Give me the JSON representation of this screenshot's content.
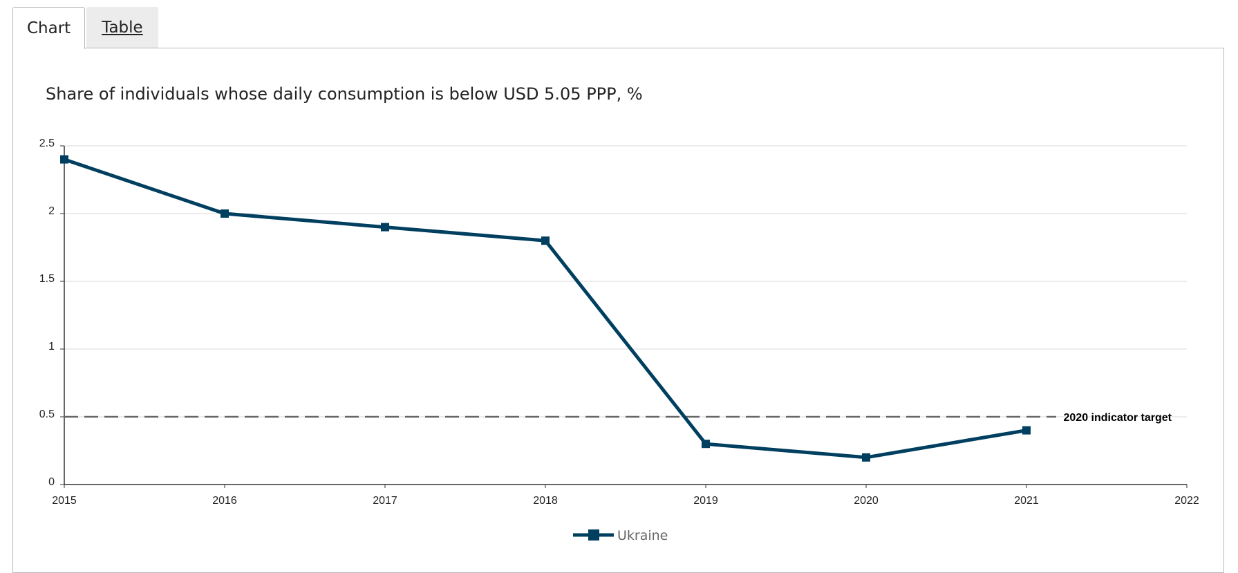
{
  "tabs": [
    {
      "label": "Chart",
      "active": true
    },
    {
      "label": "Table",
      "active": false
    }
  ],
  "chart_data": {
    "type": "line",
    "title": "Share of individuals whose daily consumption is below USD 5.05 PPP, %",
    "x_ticks": [
      "2015",
      "2016",
      "2017",
      "2018",
      "2019",
      "2020",
      "2021",
      "2022"
    ],
    "xlim": [
      2015,
      2022
    ],
    "ylim": [
      0,
      2.5
    ],
    "y_ticks": [
      "0",
      "0.5",
      "1",
      "1.5",
      "2",
      "2.5"
    ],
    "series": [
      {
        "name": "Ukraine",
        "color": "#003f5f",
        "x": [
          2015,
          2016,
          2017,
          2018,
          2019,
          2020,
          2021
        ],
        "values": [
          2.4,
          2.0,
          1.9,
          1.8,
          0.3,
          0.2,
          0.4
        ]
      }
    ],
    "reference_line": {
      "value": 0.5,
      "label": "2020 indicator target",
      "color": "#666666"
    },
    "grid": true,
    "legend_position": "bottom-center"
  }
}
